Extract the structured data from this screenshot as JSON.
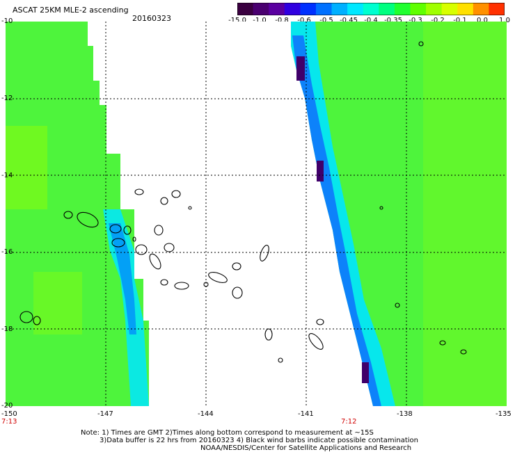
{
  "header": {
    "title": "ASCAT 25KM MLE-2 ascending",
    "date": "20160323"
  },
  "colorbar": {
    "labels": [
      "-15.0",
      "-1.0",
      "-0.8",
      "-0.6",
      "-0.5",
      "-0.45",
      "-0.4",
      "-0.35",
      "-0.3",
      "-0.2",
      "-0.1",
      "0.0",
      "1.0"
    ],
    "colors": [
      "#3c0050",
      "#50009a",
      "#2828ff",
      "#0060ff",
      "#00a8ff",
      "#00f0ff",
      "#00ffb0",
      "#20ff40",
      "#60ff00",
      "#b0ff00",
      "#ffff00",
      "#ff9000",
      "#ff2020"
    ]
  },
  "map": {
    "lon_labels": [
      "-150",
      "-147",
      "-144",
      "-141",
      "-138",
      "-135"
    ],
    "lat_labels": [
      "-10",
      "-12",
      "-14",
      "-16",
      "-18",
      "-20"
    ],
    "pass_times": [
      "7:13",
      "7:12"
    ]
  },
  "footer": {
    "line1": "Note: 1) Times are GMT 2)Times along bottom correspond to measurement at ~15S",
    "line2": "3)Data buffer is 22 hrs from 20160323 4) Black wind barbs indicate possible contamination",
    "line3": "NOAA/NESDIS/Center for Satellite Applications and Research"
  }
}
